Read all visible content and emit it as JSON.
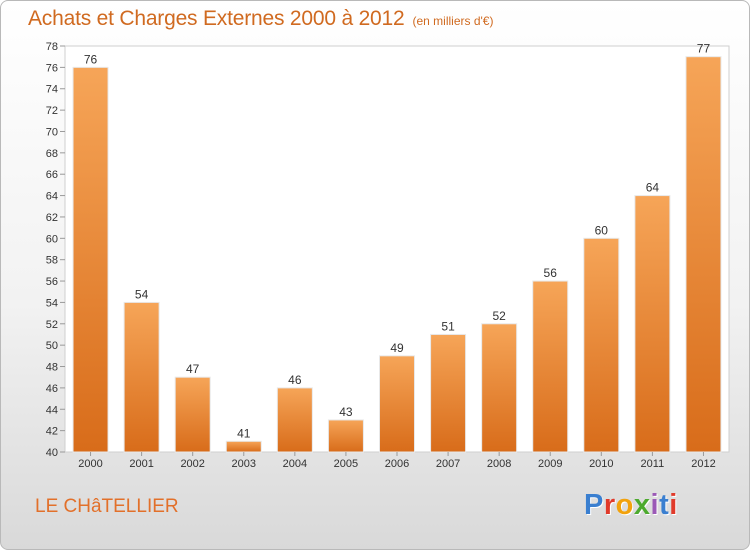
{
  "header": {
    "title": "Achats et Charges Externes 2000 à 2012",
    "subtitle": "(en milliers d'€)"
  },
  "footer": {
    "place": "LE CHâTELLIER",
    "logo": "Proxiti"
  },
  "colors": {
    "bar_light": "#f6a558",
    "bar_dark": "#d86c1a",
    "title": "#d06a20",
    "logo_letters": [
      "#3a7fd0",
      "#e03a2a",
      "#f2a20c",
      "#4daa2e",
      "#9b59b6",
      "#3a7fd0",
      "#e03a2a"
    ]
  },
  "chart_data": {
    "type": "bar",
    "title": "Achats et Charges Externes 2000 à 2012",
    "subtitle": "(en milliers d'€)",
    "xlabel": "",
    "ylabel": "",
    "categories": [
      "2000",
      "2001",
      "2002",
      "2003",
      "2004",
      "2005",
      "2006",
      "2007",
      "2008",
      "2009",
      "2010",
      "2011",
      "2012"
    ],
    "values": [
      76,
      54,
      47,
      41,
      46,
      43,
      49,
      51,
      52,
      56,
      60,
      64,
      77
    ],
    "ylim": [
      40,
      78
    ],
    "ytick_step": 2,
    "grid": false,
    "legend": "none"
  }
}
